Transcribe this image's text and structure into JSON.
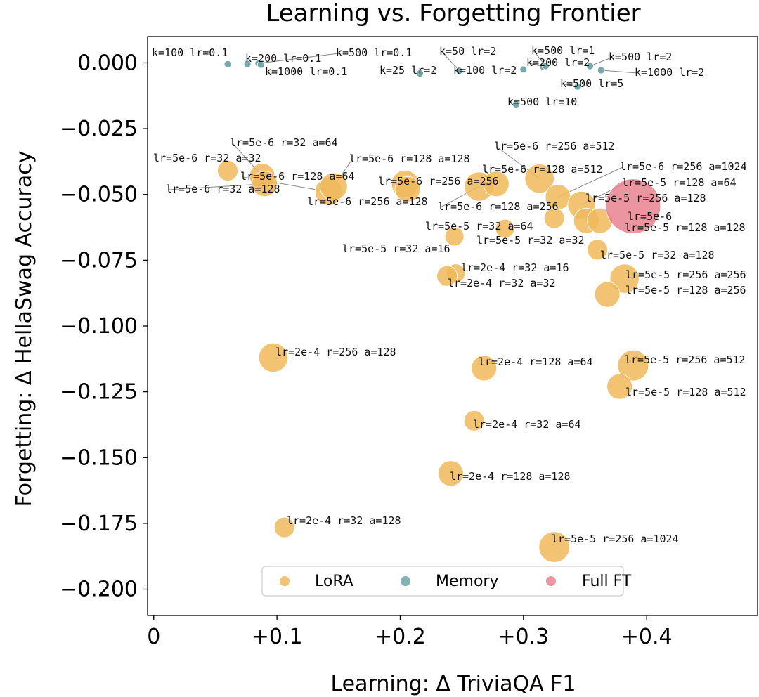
{
  "chart_data": {
    "type": "scatter",
    "title": "Learning vs. Forgetting Frontier",
    "xlabel": "Learning: Δ TriviaQA F1",
    "ylabel": "Forgetting: Δ HellaSwag Accuracy",
    "xlim": [
      -0.005,
      0.49
    ],
    "ylim": [
      -0.21,
      0.01
    ],
    "grid": false,
    "legend_position": "bottom-center",
    "x_ticks": [
      {
        "value": 0,
        "label": "0"
      },
      {
        "value": 0.1,
        "label": "+0.1"
      },
      {
        "value": 0.2,
        "label": "+0.2"
      },
      {
        "value": 0.3,
        "label": "+0.3"
      },
      {
        "value": 0.4,
        "label": "+0.4"
      }
    ],
    "y_ticks": [
      {
        "value": 0.0,
        "label": "0.000"
      },
      {
        "value": -0.025,
        "label": "−0.025"
      },
      {
        "value": -0.05,
        "label": "−0.050"
      },
      {
        "value": -0.075,
        "label": "−0.075"
      },
      {
        "value": -0.1,
        "label": "−0.100"
      },
      {
        "value": -0.125,
        "label": "−0.125"
      },
      {
        "value": -0.15,
        "label": "−0.150"
      },
      {
        "value": -0.175,
        "label": "−0.175"
      },
      {
        "value": -0.2,
        "label": "−0.200"
      }
    ],
    "series": [
      {
        "name": "LoRA",
        "color": "#f0b95a",
        "points": [
          {
            "label": "lr=5e-6 r=32 a=32",
            "x": 0.06,
            "y": -0.041,
            "size": 2
          },
          {
            "label": "lr=5e-6 r=32 a=64",
            "x": 0.088,
            "y": -0.043,
            "size": 4
          },
          {
            "label": "lr=5e-6 r=32 a=128",
            "x": 0.09,
            "y": -0.046,
            "size": 4
          },
          {
            "label": "lr=5e-6 r=128 a=64",
            "x": 0.142,
            "y": -0.049,
            "size": 5
          },
          {
            "label": "lr=5e-6 r=128 a=128",
            "x": 0.146,
            "y": -0.047,
            "size": 5
          },
          {
            "label": "lr=5e-6 r=256 a=128",
            "x": 0.204,
            "y": -0.046,
            "size": 5
          },
          {
            "label": "lr=5e-6 r=256 a=256",
            "x": 0.206,
            "y": -0.048,
            "size": 4
          },
          {
            "label": "lr=5e-6 r=128 a=256",
            "x": 0.264,
            "y": -0.047,
            "size": 6
          },
          {
            "label": "lr=5e-6 r=128 a=512",
            "x": 0.278,
            "y": -0.046,
            "size": 4
          },
          {
            "label": "lr=5e-6 r=256 a=512",
            "x": 0.313,
            "y": -0.044,
            "size": 6
          },
          {
            "label": "lr=5e-6 r=256 a=1024",
            "x": 0.328,
            "y": -0.051,
            "size": 4
          },
          {
            "label": "lr=5e-5 r=128 a=64",
            "x": 0.347,
            "y": -0.054,
            "size": 5
          },
          {
            "label": "lr=5e-5 r=256 a=128",
            "x": 0.351,
            "y": -0.06,
            "size": 4
          },
          {
            "label": "lr=5e-5 r=32 a=64",
            "x": 0.325,
            "y": -0.059,
            "size": 2
          },
          {
            "label": "lr=5e-5 r=128 a=128",
            "x": 0.362,
            "y": -0.06,
            "size": 4
          },
          {
            "label": "lr=5e-5 r=32 a=32",
            "x": 0.285,
            "y": -0.063,
            "size": 1.5
          },
          {
            "label": "lr=5e-5 r=32 a=16",
            "x": 0.244,
            "y": -0.066,
            "size": 1.5
          },
          {
            "label": "lr=5e-5 r=32 a=128",
            "x": 0.36,
            "y": -0.071,
            "size": 2
          },
          {
            "label": "lr=2e-4 r=32 a=16",
            "x": 0.245,
            "y": -0.08,
            "size": 1.5
          },
          {
            "label": "lr=2e-4 r=32 a=32",
            "x": 0.238,
            "y": -0.081,
            "size": 2
          },
          {
            "label": "lr=5e-5 r=256 a=256",
            "x": 0.382,
            "y": -0.082,
            "size": 6
          },
          {
            "label": "lr=5e-5 r=128 a=256",
            "x": 0.368,
            "y": -0.088,
            "size": 4
          },
          {
            "label": "lr=2e-4 r=256 a=128",
            "x": 0.097,
            "y": -0.112,
            "size": 6
          },
          {
            "label": "lr=2e-4 r=128 a=64",
            "x": 0.268,
            "y": -0.116,
            "size": 4
          },
          {
            "label": "lr=5e-5 r=256 a=512",
            "x": 0.389,
            "y": -0.115,
            "size": 7
          },
          {
            "label": "lr=5e-5 r=128 a=512",
            "x": 0.378,
            "y": -0.123,
            "size": 4
          },
          {
            "label": "lr=2e-4 r=32 a=64",
            "x": 0.26,
            "y": -0.136,
            "size": 2
          },
          {
            "label": "lr=2e-4 r=128 a=128",
            "x": 0.241,
            "y": -0.156,
            "size": 4
          },
          {
            "label": "lr=2e-4 r=32 a=128",
            "x": 0.106,
            "y": -0.1765,
            "size": 2
          },
          {
            "label": "lr=5e-5 r=256 a=1024",
            "x": 0.325,
            "y": -0.184,
            "size": 7
          }
        ]
      },
      {
        "name": "Memory",
        "color": "#6fa3a6",
        "points": [
          {
            "label": "k=100 lr=0.1",
            "x": 0.06,
            "y": -0.0005,
            "size": 1
          },
          {
            "label": "k=200 lr=0.1",
            "x": 0.076,
            "y": -0.0004,
            "size": 1
          },
          {
            "label": "k=500 lr=0.1",
            "x": 0.085,
            "y": -0.0002,
            "size": 1
          },
          {
            "label": "k=1000 lr=0.1",
            "x": 0.087,
            "y": -0.0007,
            "size": 1
          },
          {
            "label": "k=25 lr=2",
            "x": 0.216,
            "y": -0.004,
            "size": 1
          },
          {
            "label": "k=50 lr=2",
            "x": 0.248,
            "y": -0.003,
            "size": 1
          },
          {
            "label": "k=100 lr=2",
            "x": 0.3,
            "y": -0.0025,
            "size": 1
          },
          {
            "label": "k=200 lr=2",
            "x": 0.316,
            "y": -0.0015,
            "size": 1
          },
          {
            "label": "k=500 lr=1",
            "x": 0.318,
            "y": -0.0012,
            "size": 1
          },
          {
            "label": "k=500 lr=2",
            "x": 0.354,
            "y": -0.0012,
            "size": 1
          },
          {
            "label": "k=1000 lr=2",
            "x": 0.363,
            "y": -0.0028,
            "size": 1
          },
          {
            "label": "k=500 lr=5",
            "x": 0.344,
            "y": -0.009,
            "size": 1
          },
          {
            "label": "k=500 lr=10",
            "x": 0.294,
            "y": -0.0158,
            "size": 1
          }
        ]
      },
      {
        "name": "Full FT",
        "color": "#e8838f",
        "points": [
          {
            "label": "lr=5e-6",
            "x": 0.389,
            "y": -0.0545,
            "size": 30
          }
        ]
      }
    ]
  }
}
